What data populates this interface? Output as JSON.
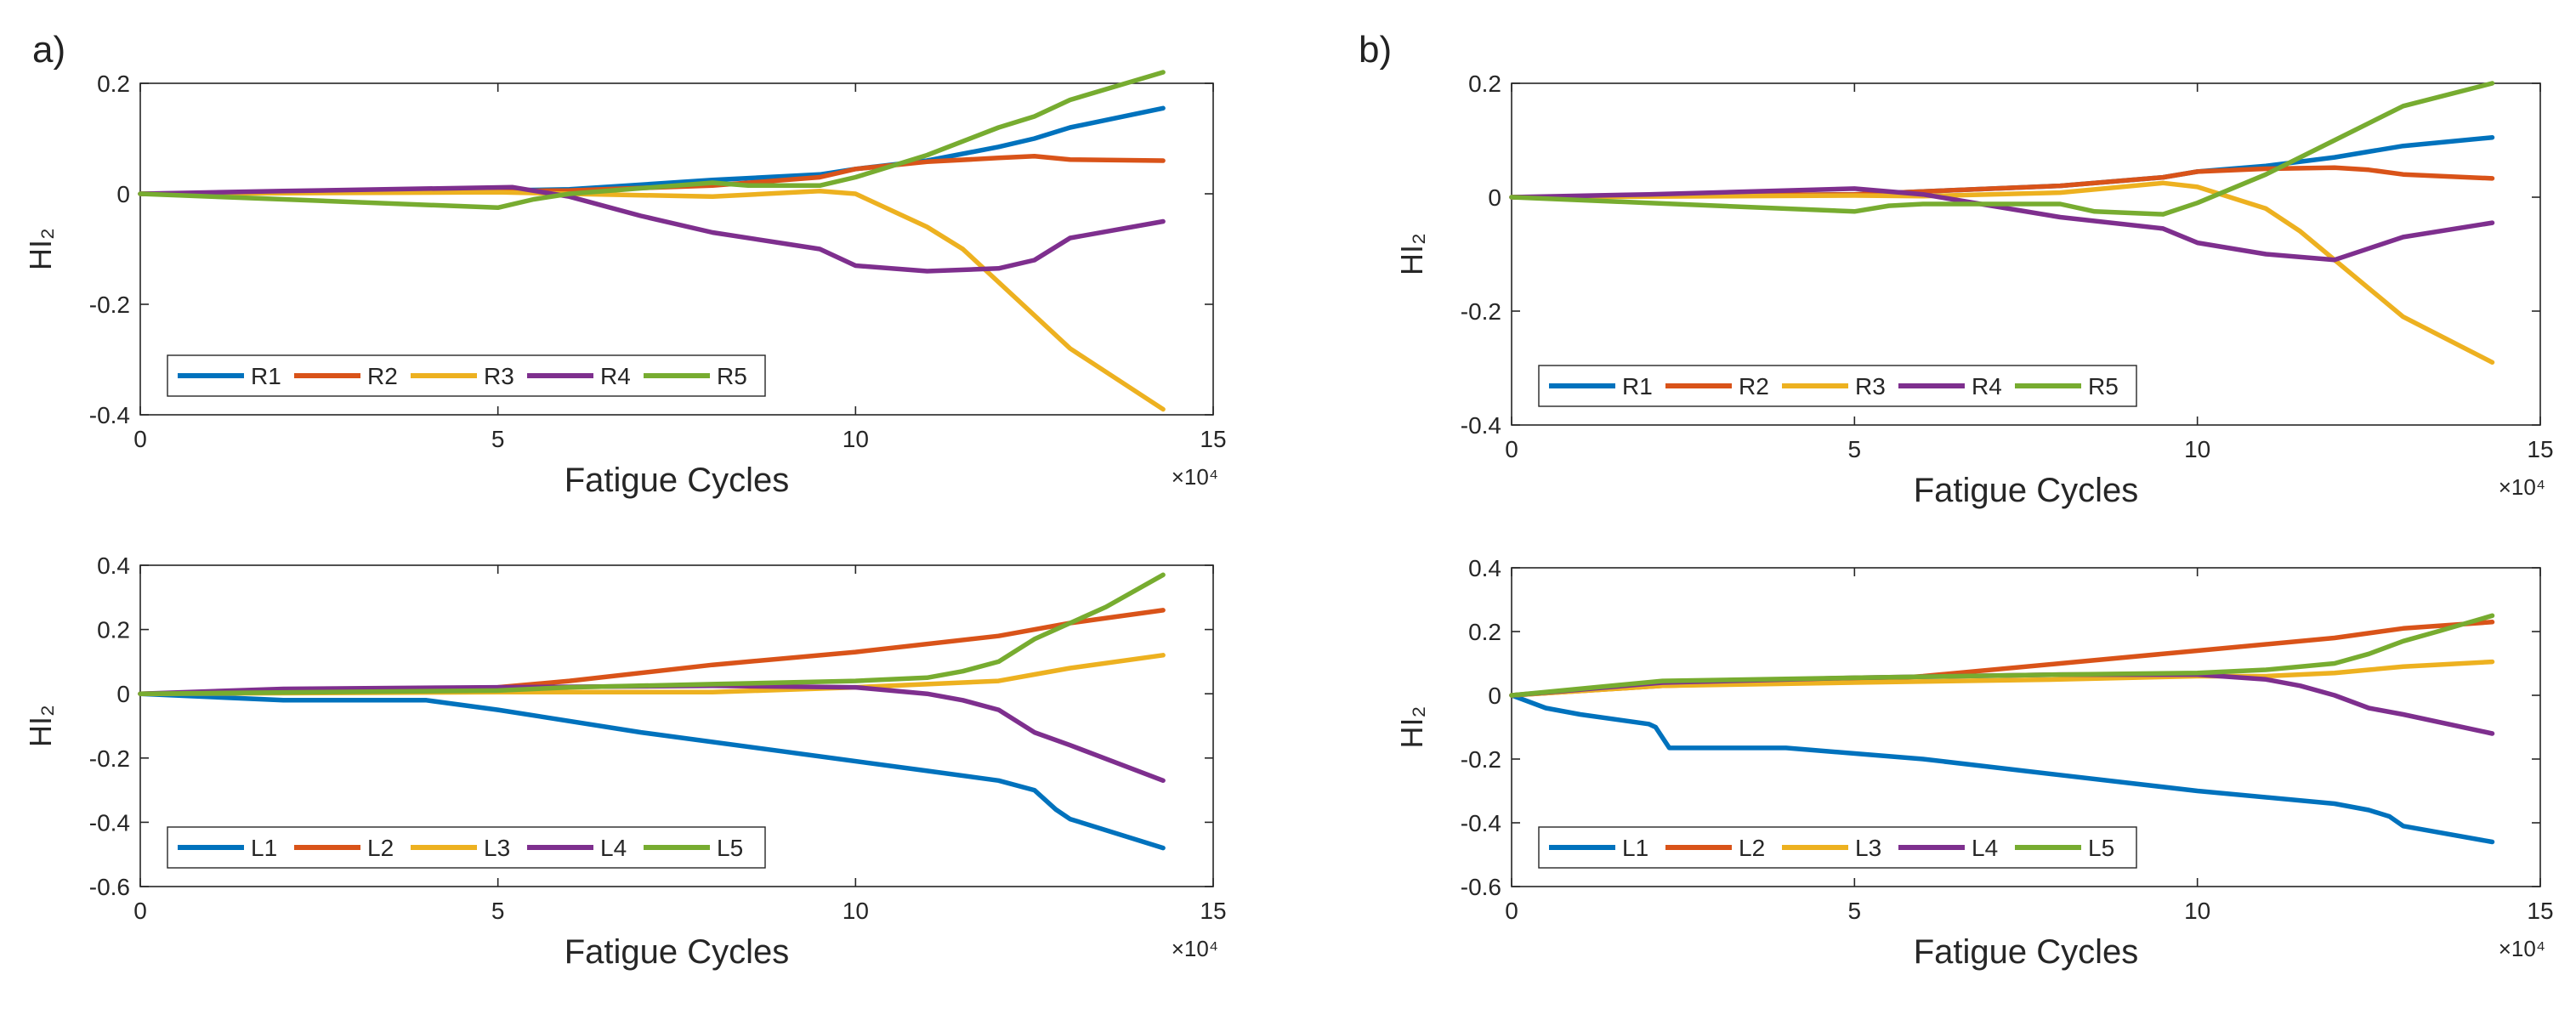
{
  "panel_labels": {
    "a": "a)",
    "b": "b)"
  },
  "colors": {
    "c1": "#0072BD",
    "c2": "#D95319",
    "c3": "#EDB120",
    "c4": "#7E2F8E",
    "c5": "#77AC30"
  },
  "chart_data": [
    {
      "id": "a-top",
      "type": "line",
      "xlabel": "Fatigue Cycles",
      "ylabel": "HI₂",
      "xlim": [
        0,
        15
      ],
      "ylim": [
        -0.4,
        0.2
      ],
      "xticks": [
        0,
        5,
        10,
        15
      ],
      "yticks": [
        -0.4,
        -0.2,
        0,
        0.2
      ],
      "ytick_labels": [
        "-0.4",
        "-0.2",
        "0",
        "0.2"
      ],
      "x_exponent": "×10⁴",
      "series": [
        {
          "name": "R1",
          "x": [
            0,
            2,
            5,
            6,
            8,
            9.5,
            10,
            11,
            12,
            12.5,
            13,
            14.3
          ],
          "y": [
            0,
            0.003,
            0.006,
            0.008,
            0.025,
            0.035,
            0.045,
            0.06,
            0.085,
            0.1,
            0.12,
            0.155
          ]
        },
        {
          "name": "R2",
          "x": [
            0,
            5,
            6,
            8,
            9.5,
            10,
            11,
            12,
            12.5,
            13,
            14.3
          ],
          "y": [
            0,
            0.005,
            0.006,
            0.015,
            0.03,
            0.045,
            0.058,
            0.065,
            0.068,
            0.062,
            0.06
          ]
        },
        {
          "name": "R3",
          "x": [
            0,
            5,
            6,
            8,
            9.5,
            10,
            11,
            11.5,
            12,
            12.5,
            13,
            14.3
          ],
          "y": [
            0,
            0.003,
            0.0,
            -0.005,
            0.005,
            0.0,
            -0.06,
            -0.1,
            -0.16,
            -0.22,
            -0.28,
            -0.39
          ]
        },
        {
          "name": "R4",
          "x": [
            0,
            2,
            5.2,
            6,
            7,
            8,
            9,
            9.5,
            10,
            11,
            12,
            12.5,
            13,
            14.3
          ],
          "y": [
            0,
            0.005,
            0.012,
            -0.005,
            -0.04,
            -0.07,
            -0.09,
            -0.1,
            -0.13,
            -0.14,
            -0.135,
            -0.12,
            -0.08,
            -0.05
          ]
        },
        {
          "name": "R5",
          "x": [
            0,
            2,
            5,
            5.5,
            6,
            8,
            8.5,
            9.5,
            10,
            11,
            12,
            12.5,
            13,
            14.3
          ],
          "y": [
            0,
            -0.01,
            -0.025,
            -0.01,
            0.0,
            0.02,
            0.015,
            0.015,
            0.03,
            0.07,
            0.12,
            0.14,
            0.17,
            0.22
          ]
        }
      ]
    },
    {
      "id": "a-bottom",
      "type": "line",
      "xlabel": "Fatigue Cycles",
      "ylabel": "HI₂",
      "xlim": [
        0,
        15
      ],
      "ylim": [
        -0.6,
        0.4
      ],
      "xticks": [
        0,
        5,
        10,
        15
      ],
      "yticks": [
        -0.6,
        -0.4,
        -0.2,
        0,
        0.2,
        0.4
      ],
      "ytick_labels": [
        "-0.6",
        "-0.4",
        "-0.2",
        "0",
        "0.2",
        "0.4"
      ],
      "x_exponent": "×10⁴",
      "series": [
        {
          "name": "L1",
          "x": [
            0,
            2,
            4,
            5,
            7,
            9,
            11,
            12,
            12.5,
            12.8,
            13,
            14.3
          ],
          "y": [
            0,
            -0.02,
            -0.02,
            -0.05,
            -0.12,
            -0.18,
            -0.24,
            -0.27,
            -0.3,
            -0.36,
            -0.39,
            -0.48
          ]
        },
        {
          "name": "L2",
          "x": [
            0,
            5,
            6,
            8,
            10,
            12,
            13,
            14.3
          ],
          "y": [
            0,
            0.02,
            0.04,
            0.09,
            0.13,
            0.18,
            0.22,
            0.26
          ]
        },
        {
          "name": "L3",
          "x": [
            0,
            5,
            8,
            10,
            11,
            12,
            12.5,
            13,
            14.3
          ],
          "y": [
            0,
            0.005,
            0.005,
            0.02,
            0.03,
            0.04,
            0.06,
            0.08,
            0.12
          ]
        },
        {
          "name": "L4",
          "x": [
            0,
            2,
            5,
            8,
            10,
            11,
            11.5,
            12,
            12.5,
            13,
            14.3
          ],
          "y": [
            0,
            0.015,
            0.02,
            0.025,
            0.02,
            0.0,
            -0.02,
            -0.05,
            -0.12,
            -0.16,
            -0.27
          ]
        },
        {
          "name": "L5",
          "x": [
            0,
            5,
            6,
            8,
            10,
            11,
            11.5,
            12,
            12.5,
            13,
            13.5,
            14.3
          ],
          "y": [
            0,
            0.01,
            0.02,
            0.03,
            0.04,
            0.05,
            0.07,
            0.1,
            0.17,
            0.22,
            0.27,
            0.37
          ]
        }
      ]
    },
    {
      "id": "b-top",
      "type": "line",
      "xlabel": "Fatigue Cycles",
      "ylabel": "HI₂",
      "xlim": [
        0,
        15
      ],
      "ylim": [
        -0.4,
        0.2
      ],
      "xticks": [
        0,
        5,
        10,
        15
      ],
      "yticks": [
        -0.4,
        -0.2,
        0,
        0.2
      ],
      "ytick_labels": [
        "-0.4",
        "-0.2",
        "0",
        "0.2"
      ],
      "x_exponent": "×10⁴",
      "series": [
        {
          "name": "R1",
          "x": [
            0,
            5,
            6,
            8,
            9.5,
            10,
            11,
            12,
            12.5,
            13,
            14.3
          ],
          "y": [
            0,
            0.005,
            0.01,
            0.02,
            0.035,
            0.045,
            0.055,
            0.07,
            0.08,
            0.09,
            0.105
          ]
        },
        {
          "name": "R2",
          "x": [
            0,
            5,
            6,
            8,
            9.5,
            10,
            11,
            12,
            12.5,
            13,
            14.3
          ],
          "y": [
            0,
            0.005,
            0.01,
            0.02,
            0.035,
            0.045,
            0.05,
            0.052,
            0.048,
            0.04,
            0.033
          ]
        },
        {
          "name": "R3",
          "x": [
            0,
            5,
            6,
            8,
            9.5,
            10,
            11,
            11.5,
            12,
            12.5,
            13,
            14.3
          ],
          "y": [
            0,
            0.003,
            0.002,
            0.008,
            0.025,
            0.018,
            -0.02,
            -0.06,
            -0.11,
            -0.16,
            -0.21,
            -0.29
          ]
        },
        {
          "name": "R4",
          "x": [
            0,
            2,
            5,
            6,
            7,
            8,
            9.5,
            10,
            11,
            12,
            12.5,
            13,
            14.3
          ],
          "y": [
            0,
            0.005,
            0.015,
            0.005,
            -0.015,
            -0.035,
            -0.055,
            -0.08,
            -0.1,
            -0.11,
            -0.09,
            -0.07,
            -0.045
          ]
        },
        {
          "name": "R5",
          "x": [
            0,
            2,
            5,
            5.5,
            6,
            8,
            8.5,
            9.5,
            10,
            11,
            12,
            12.5,
            13,
            14.3
          ],
          "y": [
            0,
            -0.01,
            -0.025,
            -0.015,
            -0.012,
            -0.012,
            -0.025,
            -0.03,
            -0.01,
            0.04,
            0.1,
            0.13,
            0.16,
            0.2
          ]
        }
      ]
    },
    {
      "id": "b-bottom",
      "type": "line",
      "xlabel": "Fatigue Cycles",
      "ylabel": "HI₂",
      "xlim": [
        0,
        15
      ],
      "ylim": [
        -0.6,
        0.4
      ],
      "xticks": [
        0,
        5,
        10,
        15
      ],
      "yticks": [
        -0.6,
        -0.4,
        -0.2,
        0,
        0.2,
        0.4
      ],
      "ytick_labels": [
        "-0.6",
        "-0.4",
        "-0.2",
        "0",
        "0.2",
        "0.4"
      ],
      "x_exponent": "×10⁴",
      "series": [
        {
          "name": "L1",
          "x": [
            0,
            0.5,
            1,
            2,
            2.1,
            2.3,
            4,
            6,
            8,
            10,
            12,
            12.5,
            12.8,
            13,
            14.3
          ],
          "y": [
            0,
            -0.04,
            -0.06,
            -0.09,
            -0.1,
            -0.165,
            -0.165,
            -0.2,
            -0.25,
            -0.3,
            -0.34,
            -0.36,
            -0.38,
            -0.41,
            -0.46
          ]
        },
        {
          "name": "L2",
          "x": [
            0,
            2.2,
            5,
            6,
            8,
            10,
            12,
            13,
            14.3
          ],
          "y": [
            0,
            0.03,
            0.045,
            0.06,
            0.1,
            0.14,
            0.18,
            0.21,
            0.23
          ]
        },
        {
          "name": "L3",
          "x": [
            0,
            2.2,
            5,
            8,
            10,
            11,
            12,
            12.5,
            13,
            14.3
          ],
          "y": [
            0,
            0.03,
            0.04,
            0.05,
            0.06,
            0.06,
            0.07,
            0.08,
            0.09,
            0.105
          ]
        },
        {
          "name": "L4",
          "x": [
            0,
            2.2,
            5,
            8,
            10,
            11,
            11.5,
            12,
            12.5,
            13,
            14.3
          ],
          "y": [
            0,
            0.04,
            0.055,
            0.065,
            0.065,
            0.05,
            0.03,
            0.0,
            -0.04,
            -0.06,
            -0.12
          ]
        },
        {
          "name": "L5",
          "x": [
            0,
            2.2,
            5,
            8,
            10,
            11,
            12,
            12.5,
            13,
            13.5,
            14.3
          ],
          "y": [
            0,
            0.045,
            0.055,
            0.065,
            0.07,
            0.08,
            0.1,
            0.13,
            0.17,
            0.2,
            0.25
          ]
        }
      ]
    }
  ]
}
